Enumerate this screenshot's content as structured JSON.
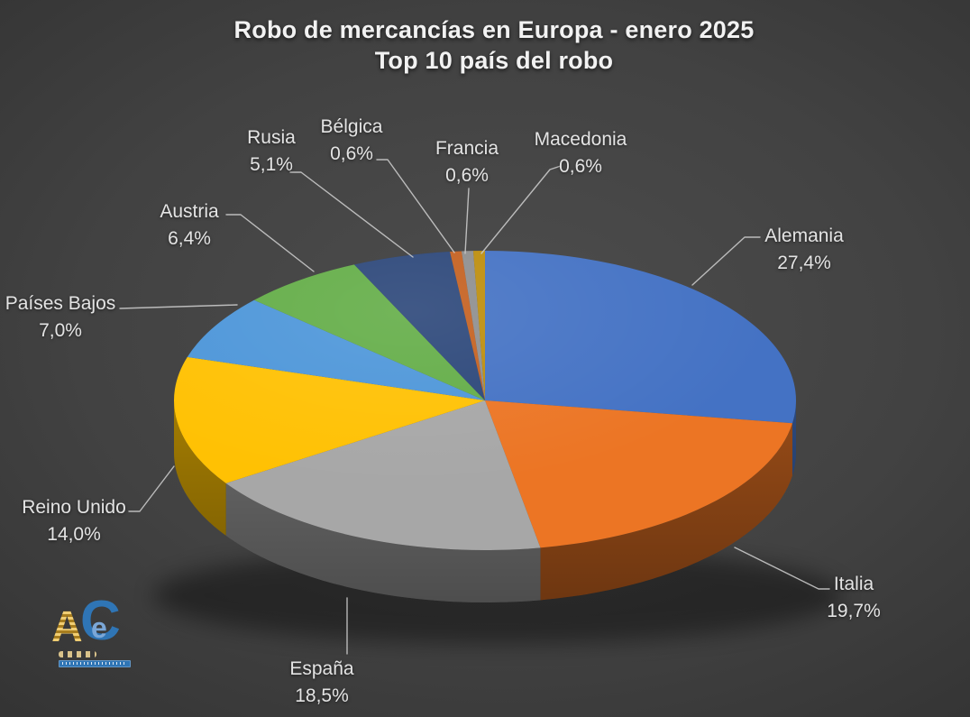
{
  "title": {
    "line1": "Robo de mercancías en Europa - enero 2025",
    "line2": "Top 10 país del robo"
  },
  "chart_data": {
    "type": "pie",
    "style": "3d",
    "title": "Robo de mercancías en Europa - enero 2025",
    "subtitle": "Top 10 país del robo",
    "unit": "%",
    "start_angle_deg": 0,
    "direction": "clockwise",
    "legend": "none",
    "data_labels": "category name + percentage outside with leader lines",
    "slices": [
      {
        "id": "alemania",
        "label": "Alemania",
        "value": 27.4,
        "value_label": "27,4%",
        "color": "#4472C4"
      },
      {
        "id": "italia",
        "label": "Italia",
        "value": 19.7,
        "value_label": "19,7%",
        "color": "#EC7524"
      },
      {
        "id": "espana",
        "label": "España",
        "value": 18.5,
        "value_label": "18,5%",
        "color": "#A7A7A7"
      },
      {
        "id": "reino-unido",
        "label": "Reino Unido",
        "value": 14.0,
        "value_label": "14,0%",
        "color": "#FFC103"
      },
      {
        "id": "paises-bajos",
        "label": "Países Bajos",
        "value": 7.0,
        "value_label": "7,0%",
        "color": "#4D96D9"
      },
      {
        "id": "austria",
        "label": "Austria",
        "value": 6.4,
        "value_label": "6,4%",
        "color": "#63AD47"
      },
      {
        "id": "rusia",
        "label": "Rusia",
        "value": 5.1,
        "value_label": "5,1%",
        "color": "#2B4679"
      },
      {
        "id": "belgica",
        "label": "Bélgica",
        "value": 0.6,
        "value_label": "0,6%",
        "color": "#C4601F"
      },
      {
        "id": "francia",
        "label": "Francia",
        "value": 0.6,
        "value_label": "0,6%",
        "color": "#8E8E8E"
      },
      {
        "id": "macedonia",
        "label": "Macedonia",
        "value": 0.6,
        "value_label": "0,6%",
        "color": "#BD8D0B"
      }
    ]
  },
  "theme": {
    "background_center": "#4D4D4D",
    "background_edge": "#242424",
    "title_color": "#F2F2F2",
    "label_color": "#E4E4E4",
    "leader_line_color": "#C9C9C9"
  },
  "logo": {
    "a": "A",
    "e": "e",
    "c": "C"
  }
}
